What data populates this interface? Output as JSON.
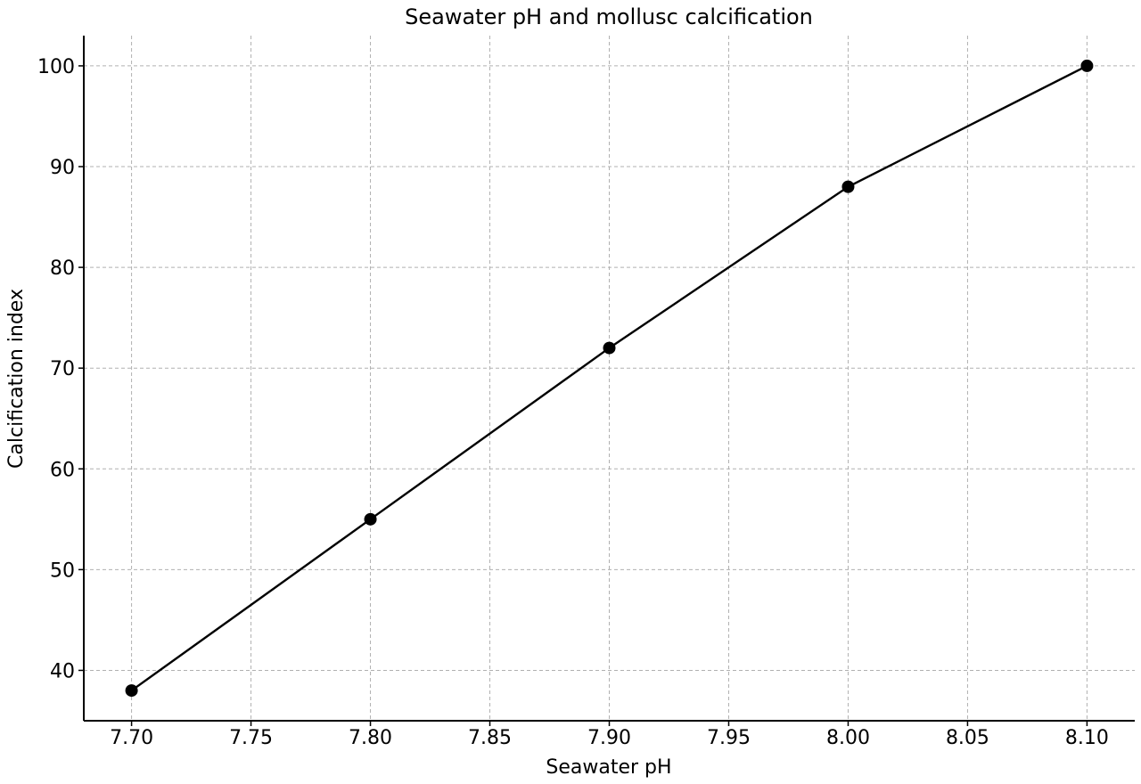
{
  "chart_data": {
    "type": "line",
    "title": "Seawater pH and mollusc calcification",
    "xlabel": "Seawater pH",
    "ylabel": "Calcification index",
    "x": [
      7.7,
      7.8,
      7.9,
      8.0,
      8.1
    ],
    "series": [
      {
        "values": [
          38,
          55,
          72,
          88,
          100
        ],
        "color": "#000000",
        "marker": "circle"
      }
    ],
    "xlim": [
      7.68,
      8.12
    ],
    "ylim": [
      35,
      103
    ],
    "xticks": [
      "7.70",
      "7.75",
      "7.80",
      "7.85",
      "7.90",
      "7.95",
      "8.00",
      "8.05",
      "8.10"
    ],
    "yticks": [
      "40",
      "50",
      "60",
      "70",
      "80",
      "90",
      "100"
    ],
    "grid": true,
    "grid_color": "#b0b0b0"
  }
}
